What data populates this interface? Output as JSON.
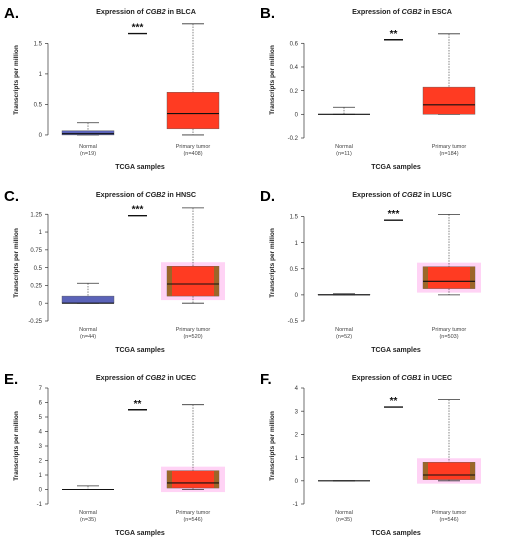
{
  "chart_data": [
    {
      "type": "box",
      "panel_letter": "A.",
      "title_prefix": "Expression of ",
      "title_gene": "CGB2",
      "title_suffix": " in BLCA",
      "xlabel": "TCGA samples",
      "ylabel": "Transcripts per million",
      "ylim": [
        -0.05,
        1.85
      ],
      "yticks": [
        0,
        0.5,
        1,
        1.5
      ],
      "significance": "***",
      "sig_y": 1.66,
      "groups": [
        {
          "label": "Normal",
          "n_label": "(n=19)",
          "min": 0,
          "q1": 0,
          "median": 0.02,
          "q3": 0.07,
          "max": 0.2,
          "color": "#5b63b8",
          "shade": false
        },
        {
          "label": "Primary tumor",
          "n_label": "(n=408)",
          "min": 0,
          "q1": 0.1,
          "median": 0.35,
          "q3": 0.7,
          "max": 1.82,
          "color": "#ff3b22",
          "shade": false
        }
      ]
    },
    {
      "type": "box",
      "panel_letter": "B.",
      "title_prefix": "Expression of ",
      "title_gene": "CGB2",
      "title_suffix": " in ESCA",
      "xlabel": "TCGA samples",
      "ylabel": "Transcripts per million",
      "ylim": [
        -0.2,
        0.78
      ],
      "yticks": [
        -0.2,
        0,
        0.2,
        0.4,
        0.6
      ],
      "significance": "**",
      "sig_y": 0.63,
      "groups": [
        {
          "label": "Normal",
          "n_label": "(n=11)",
          "min": 0,
          "q1": 0,
          "median": 0,
          "q3": 0,
          "max": 0.06,
          "color": "#5b63b8",
          "shade": false
        },
        {
          "label": "Primary tumor",
          "n_label": "(n=184)",
          "min": 0,
          "q1": 0,
          "median": 0.08,
          "q3": 0.23,
          "max": 0.68,
          "color": "#ff3b22",
          "shade": false
        }
      ]
    },
    {
      "type": "box",
      "panel_letter": "C.",
      "title_prefix": "Expression of ",
      "title_gene": "CGB2",
      "title_suffix": " in HNSC",
      "xlabel": "TCGA samples",
      "ylabel": "Transcripts per million",
      "ylim": [
        -0.25,
        1.38
      ],
      "yticks": [
        -0.25,
        0,
        0.25,
        0.5,
        0.75,
        1,
        1.25
      ],
      "significance": "***",
      "sig_y": 1.23,
      "groups": [
        {
          "label": "Normal",
          "n_label": "(n=44)",
          "min": 0,
          "q1": 0,
          "median": 0,
          "q3": 0.1,
          "max": 0.28,
          "color": "#5b63b8",
          "shade": false
        },
        {
          "label": "Primary tumor",
          "n_label": "(n=520)",
          "min": 0,
          "q1": 0.1,
          "median": 0.27,
          "q3": 0.52,
          "max": 1.34,
          "color": "#ff3b22",
          "shade": true
        }
      ]
    },
    {
      "type": "box",
      "panel_letter": "D.",
      "title_prefix": "Expression of ",
      "title_gene": "CGB2",
      "title_suffix": " in LUSC",
      "xlabel": "TCGA samples",
      "ylabel": "Transcripts per million",
      "ylim": [
        -0.5,
        1.72
      ],
      "yticks": [
        -0.5,
        0,
        0.5,
        1,
        1.5
      ],
      "significance": "***",
      "sig_y": 1.43,
      "groups": [
        {
          "label": "Normal",
          "n_label": "(n=52)",
          "min": 0,
          "q1": 0,
          "median": 0,
          "q3": 0.01,
          "max": 0.02,
          "color": "#5b63b8",
          "shade": false
        },
        {
          "label": "Primary tumor",
          "n_label": "(n=503)",
          "min": 0,
          "q1": 0.12,
          "median": 0.26,
          "q3": 0.54,
          "max": 1.54,
          "color": "#ff3b22",
          "shade": true
        }
      ]
    },
    {
      "type": "box",
      "panel_letter": "E.",
      "title_prefix": "Expression of ",
      "title_gene": "CGB2",
      "title_suffix": " in UCEC",
      "xlabel": "TCGA samples",
      "ylabel": "Transcripts per million",
      "ylim": [
        -1,
        7
      ],
      "yticks": [
        -1,
        0,
        1,
        2,
        3,
        4,
        5,
        6,
        7
      ],
      "significance": "**",
      "sig_y": 5.5,
      "groups": [
        {
          "label": "Normal",
          "n_label": "(n=35)",
          "min": 0,
          "q1": 0,
          "median": 0,
          "q3": 0.02,
          "max": 0.25,
          "color": "#5b63b8",
          "shade": false
        },
        {
          "label": "Primary tumor",
          "n_label": "(n=546)",
          "min": 0,
          "q1": 0.1,
          "median": 0.45,
          "q3": 1.3,
          "max": 5.85,
          "color": "#ff3b22",
          "shade": true
        }
      ]
    },
    {
      "type": "box",
      "panel_letter": "F.",
      "title_prefix": "Expression of ",
      "title_gene": "CGB1",
      "title_suffix": " in UCEC",
      "xlabel": "TCGA samples",
      "ylabel": "Transcripts per million",
      "ylim": [
        -1,
        4
      ],
      "yticks": [
        -1,
        0,
        1,
        2,
        3,
        4
      ],
      "significance": "**",
      "sig_y": 3.18,
      "groups": [
        {
          "label": "Normal",
          "n_label": "(n=35)",
          "min": 0,
          "q1": 0,
          "median": 0,
          "q3": 0,
          "max": 0,
          "color": "#5b63b8",
          "shade": false
        },
        {
          "label": "Primary tumor",
          "n_label": "(n=546)",
          "min": 0,
          "q1": 0.05,
          "median": 0.25,
          "q3": 0.8,
          "max": 3.5,
          "color": "#ff3b22",
          "shade": true
        }
      ]
    }
  ],
  "colors": {
    "normal_fill": "#5b63b8",
    "tumor_fill": "#ff3b22",
    "tumor_shade": "#ffc8f2",
    "tumor_olive": "#8b6f2a",
    "axis": "#333333"
  }
}
